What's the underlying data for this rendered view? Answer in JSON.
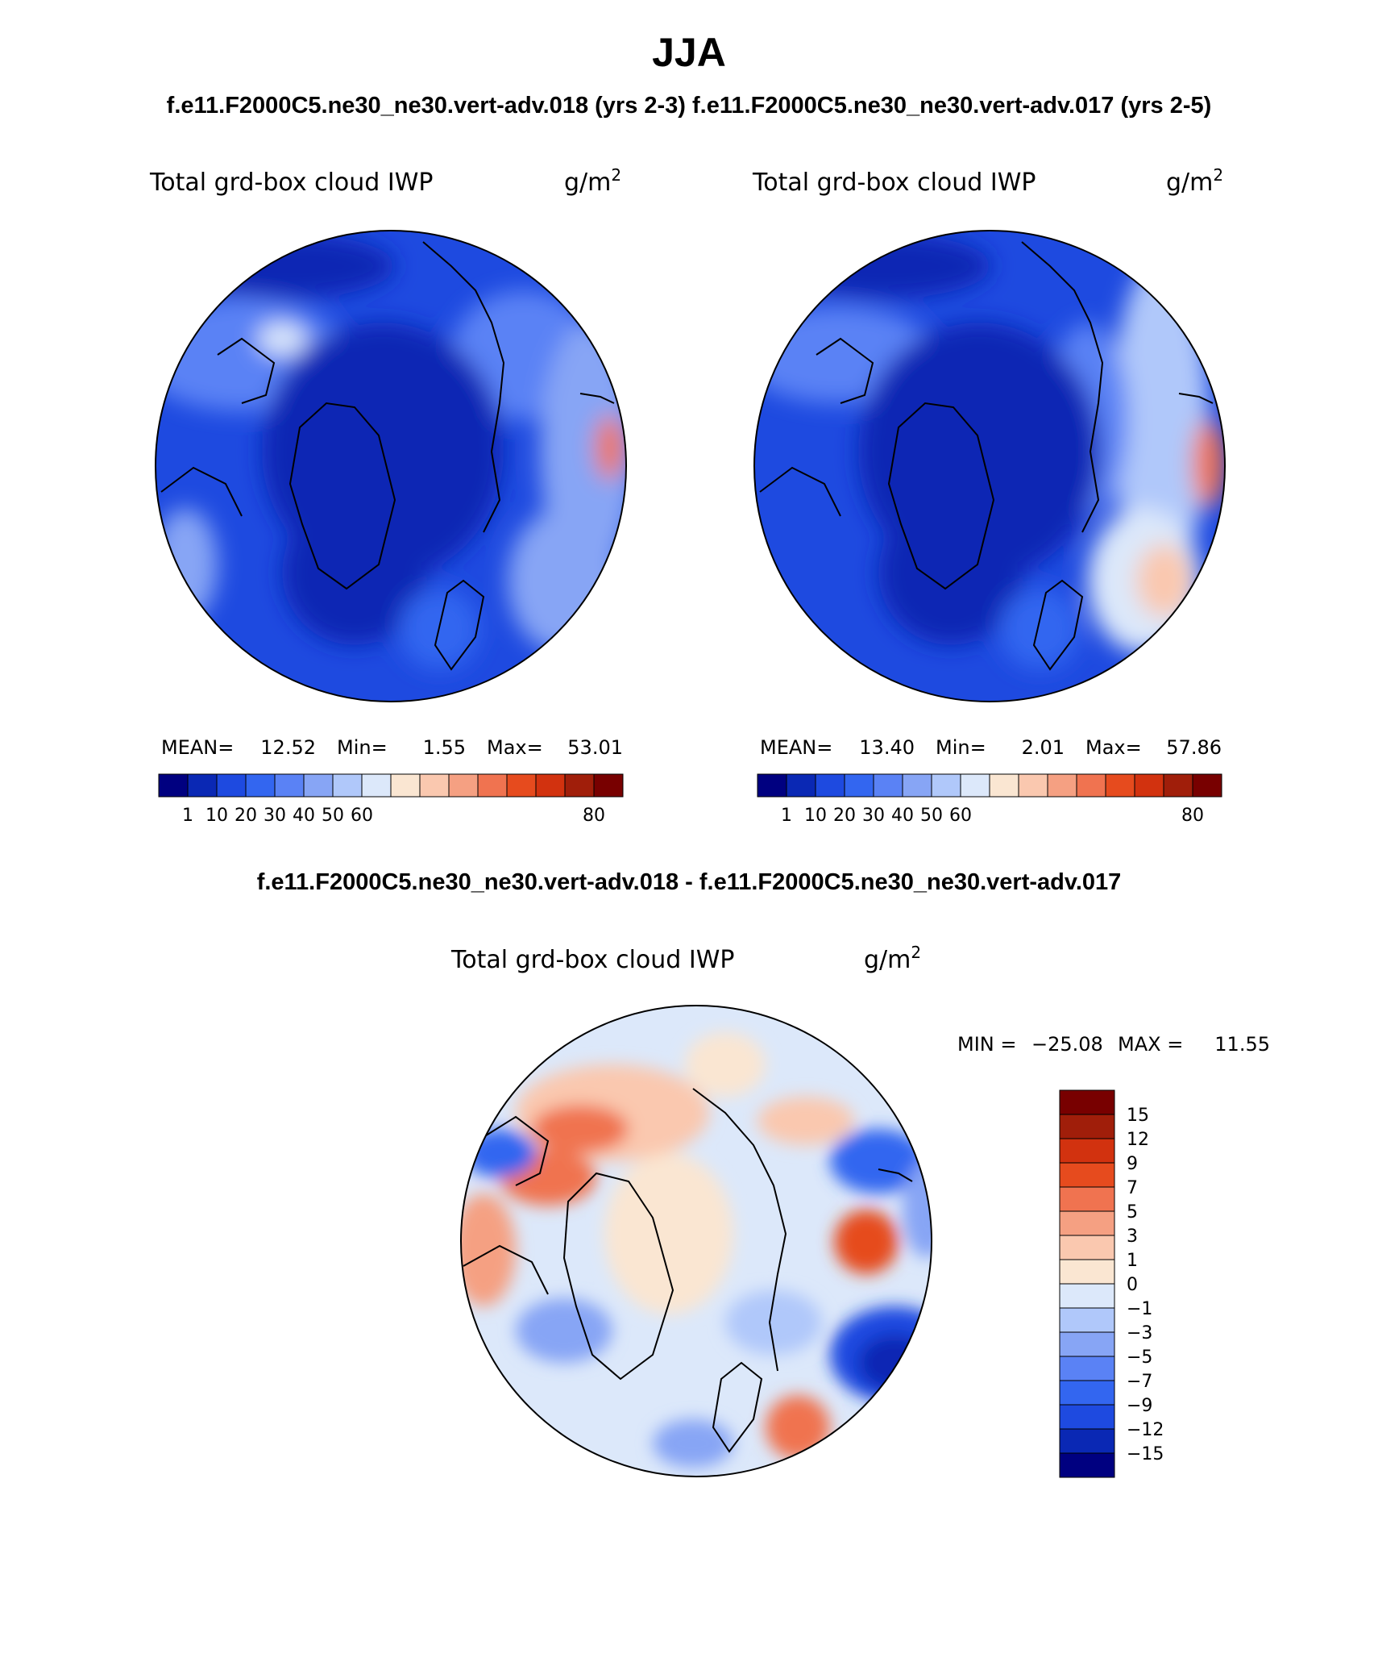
{
  "header": {
    "season": "JJA",
    "subtitle": "f.e11.F2000C5.ne30_ne30.vert-adv.018 (yrs 2-3) f.e11.F2000C5.ne30_ne30.vert-adv.017 (yrs 2-5)",
    "diff_title": "f.e11.F2000C5.ne30_ne30.vert-adv.018 - f.e11.F2000C5.ne30_ne30.vert-adv.017"
  },
  "chart_data": [
    {
      "type": "heatmap",
      "projection": "north-polar-stereographic",
      "case": "f.e11.F2000C5.ne30_ne30.vert-adv.018 (yrs 2-3)",
      "variable": "Total grd-box cloud IWP",
      "units_base": "g/m",
      "units_exp": "2",
      "stats": {
        "mean_label": "MEAN=",
        "mean": "12.52",
        "min_label": "Min=",
        "min": "1.55",
        "max_label": "Max=",
        "max": "53.01"
      },
      "contour_levels": [
        "1",
        "10",
        "20",
        "30",
        "40",
        "50",
        "60",
        "80"
      ],
      "colors": [
        "#000080",
        "#0a28b4",
        "#1e4ae0",
        "#3366f0",
        "#5a82f5",
        "#87a5f5",
        "#b0c8fa",
        "#dce8fa",
        "#fae6d2",
        "#fac8af",
        "#f5a082",
        "#f07350",
        "#e64b1e",
        "#d2320f",
        "#a01e0a",
        "#780000"
      ],
      "dominant_field": "mostly 1-20 g/m2 over Arctic Ocean and Greenland, 20-40 near Pacific, local max up to 53.01"
    },
    {
      "type": "heatmap",
      "projection": "north-polar-stereographic",
      "case": "f.e11.F2000C5.ne30_ne30.vert-adv.017 (yrs 2-5)",
      "variable": "Total grd-box cloud IWP",
      "units_base": "g/m",
      "units_exp": "2",
      "stats": {
        "mean_label": "MEAN=",
        "mean": "13.40",
        "min_label": "Min=",
        "min": "2.01",
        "max_label": "Max=",
        "max": "57.86"
      },
      "contour_levels": [
        "1",
        "10",
        "20",
        "30",
        "40",
        "50",
        "60",
        "80"
      ],
      "colors": [
        "#000080",
        "#0a28b4",
        "#1e4ae0",
        "#3366f0",
        "#5a82f5",
        "#87a5f5",
        "#b0c8fa",
        "#dce8fa",
        "#fae6d2",
        "#fac8af",
        "#f5a082",
        "#f07350",
        "#e64b1e",
        "#d2320f",
        "#a01e0a",
        "#780000"
      ],
      "dominant_field": "mostly 1-20 g/m2 over Arctic Ocean and Greenland, 30-50 near Pacific, local max up to 57.86"
    },
    {
      "type": "heatmap",
      "projection": "north-polar-stereographic",
      "case": "f.e11.F2000C5.ne30_ne30.vert-adv.018 - f.e11.F2000C5.ne30_ne30.vert-adv.017",
      "variable": "Total grd-box cloud IWP",
      "units_base": "g/m",
      "units_exp": "2",
      "stats": {
        "min_label": "MIN =",
        "min": "−25.08",
        "max_label": "MAX =",
        "max": "11.55"
      },
      "contour_levels": [
        "15",
        "12",
        "9",
        "7",
        "5",
        "3",
        "1",
        "0",
        "−1",
        "−3",
        "−5",
        "−7",
        "−9",
        "−12",
        "−15"
      ],
      "colors": [
        "#780000",
        "#a01e0a",
        "#d2320f",
        "#e64b1e",
        "#f07350",
        "#f5a082",
        "#fac8af",
        "#fae6d2",
        "#dce8fa",
        "#b0c8fa",
        "#87a5f5",
        "#5a82f5",
        "#3366f0",
        "#1e4ae0",
        "#0a28b4",
        "#000080"
      ],
      "dominant_field": "differences mostly within -3 to 3 g/m2, positive over Siberia, strong negative over North Pacific"
    }
  ]
}
